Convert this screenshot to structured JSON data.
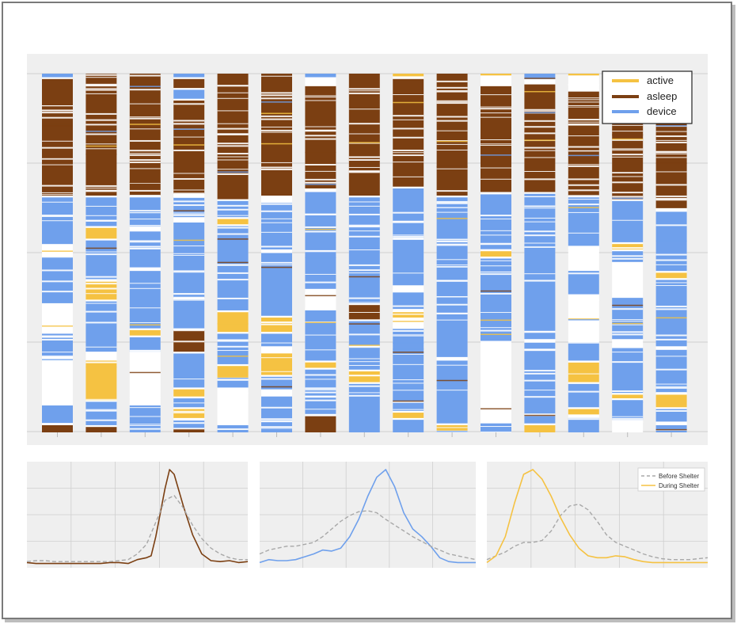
{
  "colors": {
    "active": "#f5c242",
    "asleep": "#7b3f12",
    "device": "#6fa0ec",
    "plot_bg": "#efefef",
    "grid": "#cfcfcf",
    "before": "#a8a8a8"
  },
  "chart_data": [
    {
      "type": "bar",
      "chart": "daily activity timelines per participant (stacked state segments)",
      "participants": 15,
      "legend": {
        "position": "top-right",
        "entries": [
          "active",
          "asleep",
          "device"
        ]
      },
      "grid": true,
      "ylim": [
        0,
        24
      ],
      "columns": [
        {
          "segments": [
            [
              "device",
              0,
              0.2
            ],
            [
              "asleep",
              0.3,
              6.8
            ],
            [
              "device",
              6.9,
              9.5
            ],
            [
              "device",
              10.2,
              12.8
            ],
            [
              "device",
              14.5,
              15.8
            ],
            [
              "device",
              18.5,
              19.5
            ],
            [
              "asleep",
              19.6,
              20
            ]
          ]
        },
        {
          "segments": [
            [
              "asleep",
              0,
              6.8
            ],
            [
              "device",
              6.9,
              8.5
            ],
            [
              "active",
              8.6,
              9.2
            ],
            [
              "device",
              9.3,
              11.5
            ],
            [
              "active",
              11.6,
              12.6
            ],
            [
              "device",
              12.7,
              15.5
            ],
            [
              "active",
              16,
              18.2
            ],
            [
              "device",
              18.3,
              19.6
            ],
            [
              "asleep",
              19.7,
              20
            ]
          ]
        },
        {
          "segments": [
            [
              "asleep",
              0,
              6.8
            ],
            [
              "device",
              6.9,
              8.5
            ],
            [
              "device",
              8.8,
              10.8
            ],
            [
              "device",
              11,
              14.2
            ],
            [
              "active",
              14.3,
              14.6
            ],
            [
              "device",
              14.7,
              15.5
            ],
            [
              "device",
              18.5,
              20
            ]
          ]
        },
        {
          "segments": [
            [
              "device",
              0,
              0.2
            ],
            [
              "asleep",
              0.3,
              0.8
            ],
            [
              "device",
              0.9,
              1.4
            ],
            [
              "asleep",
              1.5,
              6.7
            ],
            [
              "device",
              6.9,
              8
            ],
            [
              "device",
              8.3,
              12.5
            ],
            [
              "device",
              12.6,
              14.2
            ],
            [
              "asleep",
              14.3,
              15.5
            ],
            [
              "device",
              15.6,
              17.5
            ],
            [
              "active",
              17.6,
              18
            ],
            [
              "device",
              18.1,
              18.6
            ],
            [
              "active",
              18.7,
              19.2
            ],
            [
              "device",
              19.3,
              19.8
            ],
            [
              "asleep",
              19.8,
              20
            ]
          ]
        },
        {
          "segments": [
            [
              "asleep",
              0,
              7
            ],
            [
              "device",
              7.1,
              8
            ],
            [
              "active",
              8.1,
              8.4
            ],
            [
              "device",
              8.5,
              13.2
            ],
            [
              "active",
              13.3,
              14.4
            ],
            [
              "device",
              14.5,
              16.2
            ],
            [
              "active",
              16.3,
              17
            ],
            [
              "device",
              17.1,
              17.5
            ],
            [
              "device",
              19.6,
              20
            ]
          ]
        },
        {
          "segments": [
            [
              "asleep",
              0,
              6.8
            ],
            [
              "device",
              7.2,
              9.8
            ],
            [
              "device",
              10,
              13.5
            ],
            [
              "active",
              13.6,
              14.4
            ],
            [
              "device",
              14.5,
              15.2
            ],
            [
              "active",
              15.6,
              16.8
            ],
            [
              "device",
              16.9,
              17.6
            ],
            [
              "device",
              18,
              20
            ]
          ]
        },
        {
          "segments": [
            [
              "device",
              0,
              0.2
            ],
            [
              "asleep",
              0.7,
              6.4
            ],
            [
              "device",
              6.6,
              7.8
            ],
            [
              "device",
              7.9,
              12
            ],
            [
              "device",
              13.2,
              16
            ],
            [
              "active",
              16.1,
              16.4
            ],
            [
              "device",
              16.5,
              19
            ],
            [
              "asleep",
              19.1,
              20
            ]
          ]
        },
        {
          "segments": [
            [
              "asleep",
              0,
              6.8
            ],
            [
              "device",
              6.9,
              12.8
            ],
            [
              "asleep",
              12.9,
              13.7
            ],
            [
              "device",
              13.8,
              16.5
            ],
            [
              "active",
              16.6,
              17.2
            ],
            [
              "device",
              17.3,
              20
            ]
          ]
        },
        {
          "segments": [
            [
              "active",
              0,
              0.15
            ],
            [
              "asleep",
              0.3,
              6.3
            ],
            [
              "device",
              6.4,
              11.8
            ],
            [
              "device",
              12.2,
              13.2
            ],
            [
              "active",
              13.3,
              13.6
            ],
            [
              "device",
              14.2,
              18.8
            ],
            [
              "active",
              18.9,
              19.2
            ],
            [
              "device",
              19.3,
              20
            ]
          ]
        },
        {
          "segments": [
            [
              "asleep",
              0,
              6.8
            ],
            [
              "device",
              6.9,
              11.5
            ],
            [
              "device",
              11.6,
              15.8
            ],
            [
              "device",
              16,
              19.5
            ],
            [
              "active",
              19.6,
              19.9
            ]
          ]
        },
        {
          "segments": [
            [
              "active",
              0,
              0.1
            ],
            [
              "asleep",
              0.7,
              6.6
            ],
            [
              "device",
              6.7,
              9.8
            ],
            [
              "active",
              9.9,
              10.2
            ],
            [
              "device",
              10.3,
              14.9
            ],
            [
              "device",
              19.5,
              20
            ]
          ]
        },
        {
          "segments": [
            [
              "device",
              0,
              0.3
            ],
            [
              "asleep",
              0.6,
              6.6
            ],
            [
              "device",
              6.7,
              14.8
            ],
            [
              "device",
              15,
              19.5
            ],
            [
              "active",
              19.6,
              20
            ]
          ]
        },
        {
          "segments": [
            [
              "active",
              0,
              0.1
            ],
            [
              "asleep",
              1,
              6.8
            ],
            [
              "device",
              6.9,
              9.6
            ],
            [
              "device",
              11,
              12.3
            ],
            [
              "device",
              15,
              16
            ],
            [
              "active",
              16.1,
              17.2
            ],
            [
              "device",
              17.3,
              18.6
            ],
            [
              "active",
              18.7,
              19
            ],
            [
              "device",
              19.2,
              20
            ]
          ]
        },
        {
          "segments": [
            [
              "asleep",
              0,
              7
            ],
            [
              "device",
              7.1,
              9.4
            ],
            [
              "active",
              9.5,
              9.8
            ],
            [
              "device",
              9.9,
              10.5
            ],
            [
              "device",
              12.5,
              14.8
            ],
            [
              "device",
              15.3,
              17.8
            ],
            [
              "active",
              17.9,
              18.1
            ],
            [
              "device",
              18.2,
              19.3
            ]
          ]
        },
        {
          "segments": [
            [
              "asleep",
              0,
              7.5
            ],
            [
              "device",
              7.7,
              11
            ],
            [
              "active",
              11.1,
              11.4
            ],
            [
              "device",
              11.5,
              15.2
            ],
            [
              "device",
              15.4,
              17.8
            ],
            [
              "active",
              17.9,
              18.6
            ],
            [
              "device",
              18.7,
              19.4
            ],
            [
              "device",
              19.6,
              20
            ]
          ]
        }
      ]
    },
    {
      "type": "line",
      "chart": "asleep distribution",
      "grid": true,
      "xlim": [
        0,
        24
      ],
      "ylim": [
        0,
        1
      ],
      "series": [
        {
          "style": "solid",
          "color": "#7b3f12",
          "x": [
            0,
            1,
            2,
            3,
            4,
            5,
            6,
            7,
            8,
            9,
            10,
            11,
            12,
            13,
            13.5,
            14,
            14.5,
            15,
            15.5,
            16,
            17,
            18,
            19,
            20,
            21,
            22,
            23,
            24
          ],
          "y": [
            0.03,
            0.02,
            0.02,
            0.02,
            0.02,
            0.02,
            0.02,
            0.02,
            0.02,
            0.03,
            0.03,
            0.02,
            0.06,
            0.08,
            0.1,
            0.3,
            0.55,
            0.8,
            1.0,
            0.95,
            0.62,
            0.32,
            0.12,
            0.05,
            0.04,
            0.05,
            0.03,
            0.04
          ]
        },
        {
          "style": "dashed",
          "color": "#a8a8a8",
          "x": [
            0,
            1,
            2,
            3,
            4,
            5,
            6,
            7,
            8,
            9,
            10,
            11,
            12,
            13,
            14,
            15,
            16,
            17,
            18,
            19,
            20,
            21,
            22,
            23,
            24
          ],
          "y": [
            0.04,
            0.05,
            0.05,
            0.04,
            0.04,
            0.04,
            0.04,
            0.04,
            0.04,
            0.04,
            0.05,
            0.06,
            0.12,
            0.22,
            0.45,
            0.68,
            0.73,
            0.6,
            0.42,
            0.28,
            0.18,
            0.12,
            0.08,
            0.06,
            0.06
          ]
        }
      ]
    },
    {
      "type": "line",
      "chart": "device distribution",
      "grid": true,
      "xlim": [
        0,
        24
      ],
      "ylim": [
        0,
        1
      ],
      "series": [
        {
          "style": "solid",
          "color": "#6fa0ec",
          "x": [
            0,
            1,
            2,
            3,
            4,
            5,
            6,
            7,
            8,
            9,
            10,
            11,
            12,
            13,
            14,
            15,
            16,
            17,
            18,
            19,
            20,
            21,
            22,
            23,
            24
          ],
          "y": [
            0.03,
            0.06,
            0.05,
            0.05,
            0.06,
            0.09,
            0.12,
            0.16,
            0.15,
            0.18,
            0.3,
            0.48,
            0.72,
            0.92,
            1.0,
            0.82,
            0.55,
            0.38,
            0.3,
            0.2,
            0.08,
            0.04,
            0.03,
            0.03,
            0.03
          ]
        },
        {
          "style": "dashed",
          "color": "#a8a8a8",
          "x": [
            0,
            1,
            2,
            3,
            4,
            5,
            6,
            7,
            8,
            9,
            10,
            11,
            12,
            13,
            14,
            15,
            16,
            17,
            18,
            19,
            20,
            21,
            22,
            23,
            24
          ],
          "y": [
            0.12,
            0.16,
            0.18,
            0.2,
            0.2,
            0.22,
            0.24,
            0.3,
            0.38,
            0.46,
            0.52,
            0.56,
            0.57,
            0.55,
            0.48,
            0.42,
            0.36,
            0.3,
            0.25,
            0.2,
            0.16,
            0.12,
            0.1,
            0.08,
            0.06
          ]
        }
      ]
    },
    {
      "type": "line",
      "chart": "active distribution",
      "grid": true,
      "xlim": [
        0,
        24
      ],
      "ylim": [
        0,
        1
      ],
      "legend": {
        "position": "top-right",
        "entries": [
          "Before Shelter",
          "During Shelter"
        ]
      },
      "series": [
        {
          "name": "Before Shelter",
          "style": "dashed",
          "color": "#a8a8a8",
          "x": [
            0,
            1,
            2,
            3,
            4,
            5,
            6,
            7,
            8,
            9,
            10,
            11,
            12,
            13,
            14,
            15,
            16,
            17,
            18,
            19,
            20,
            21,
            22,
            23,
            24
          ],
          "y": [
            0.06,
            0.1,
            0.14,
            0.2,
            0.24,
            0.24,
            0.26,
            0.36,
            0.52,
            0.62,
            0.64,
            0.58,
            0.46,
            0.32,
            0.24,
            0.2,
            0.16,
            0.12,
            0.09,
            0.07,
            0.06,
            0.06,
            0.06,
            0.07,
            0.08
          ]
        },
        {
          "name": "During Shelter",
          "style": "solid",
          "color": "#f5c242",
          "x": [
            0,
            1,
            2,
            3,
            4,
            5,
            6,
            7,
            8,
            9,
            10,
            11,
            12,
            13,
            14,
            15,
            16,
            17,
            18,
            19,
            20,
            21,
            22,
            23,
            24
          ],
          "y": [
            0.03,
            0.1,
            0.3,
            0.65,
            0.95,
            1.0,
            0.9,
            0.72,
            0.5,
            0.32,
            0.18,
            0.1,
            0.08,
            0.08,
            0.1,
            0.09,
            0.06,
            0.04,
            0.03,
            0.03,
            0.03,
            0.03,
            0.03,
            0.03,
            0.03
          ]
        }
      ]
    }
  ]
}
